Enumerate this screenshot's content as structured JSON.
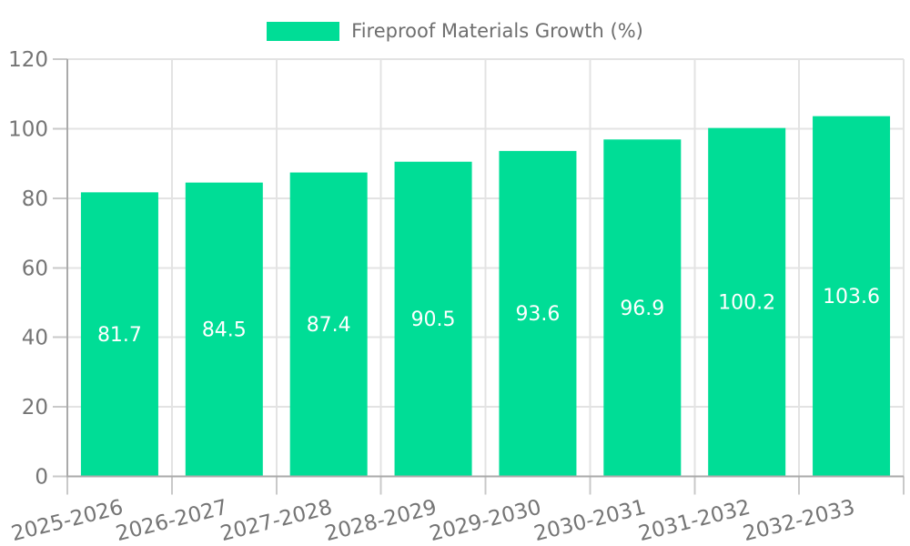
{
  "legend": {
    "label": "Fireproof Materials Growth (%)"
  },
  "chart_data": {
    "type": "bar",
    "title": "Fireproof Materials Growth (%)",
    "categories": [
      "2025-2026",
      "2026-2027",
      "2027-2028",
      "2028-2029",
      "2029-2030",
      "2030-2031",
      "2031-2032",
      "2032-2033"
    ],
    "values": [
      81.7,
      84.5,
      87.4,
      90.5,
      93.6,
      96.9,
      100.2,
      103.6
    ],
    "bar_labels": [
      "81.7",
      "84.5",
      "87.4",
      "90.5",
      "93.6",
      "96.9",
      "100.2",
      "103.6"
    ],
    "xlabel": "",
    "ylabel": "",
    "ylim": [
      0,
      120
    ],
    "yticks": [
      0,
      20,
      40,
      60,
      80,
      100,
      120
    ],
    "grid": true,
    "legend_position": "top",
    "colors": {
      "bar": "#00dd96",
      "bar_value_label": "#ffffff",
      "grid": "#e3e3e3",
      "axis": "#aaaaaa",
      "tick": "#c9c9c9",
      "axis_text": "#757575"
    }
  }
}
